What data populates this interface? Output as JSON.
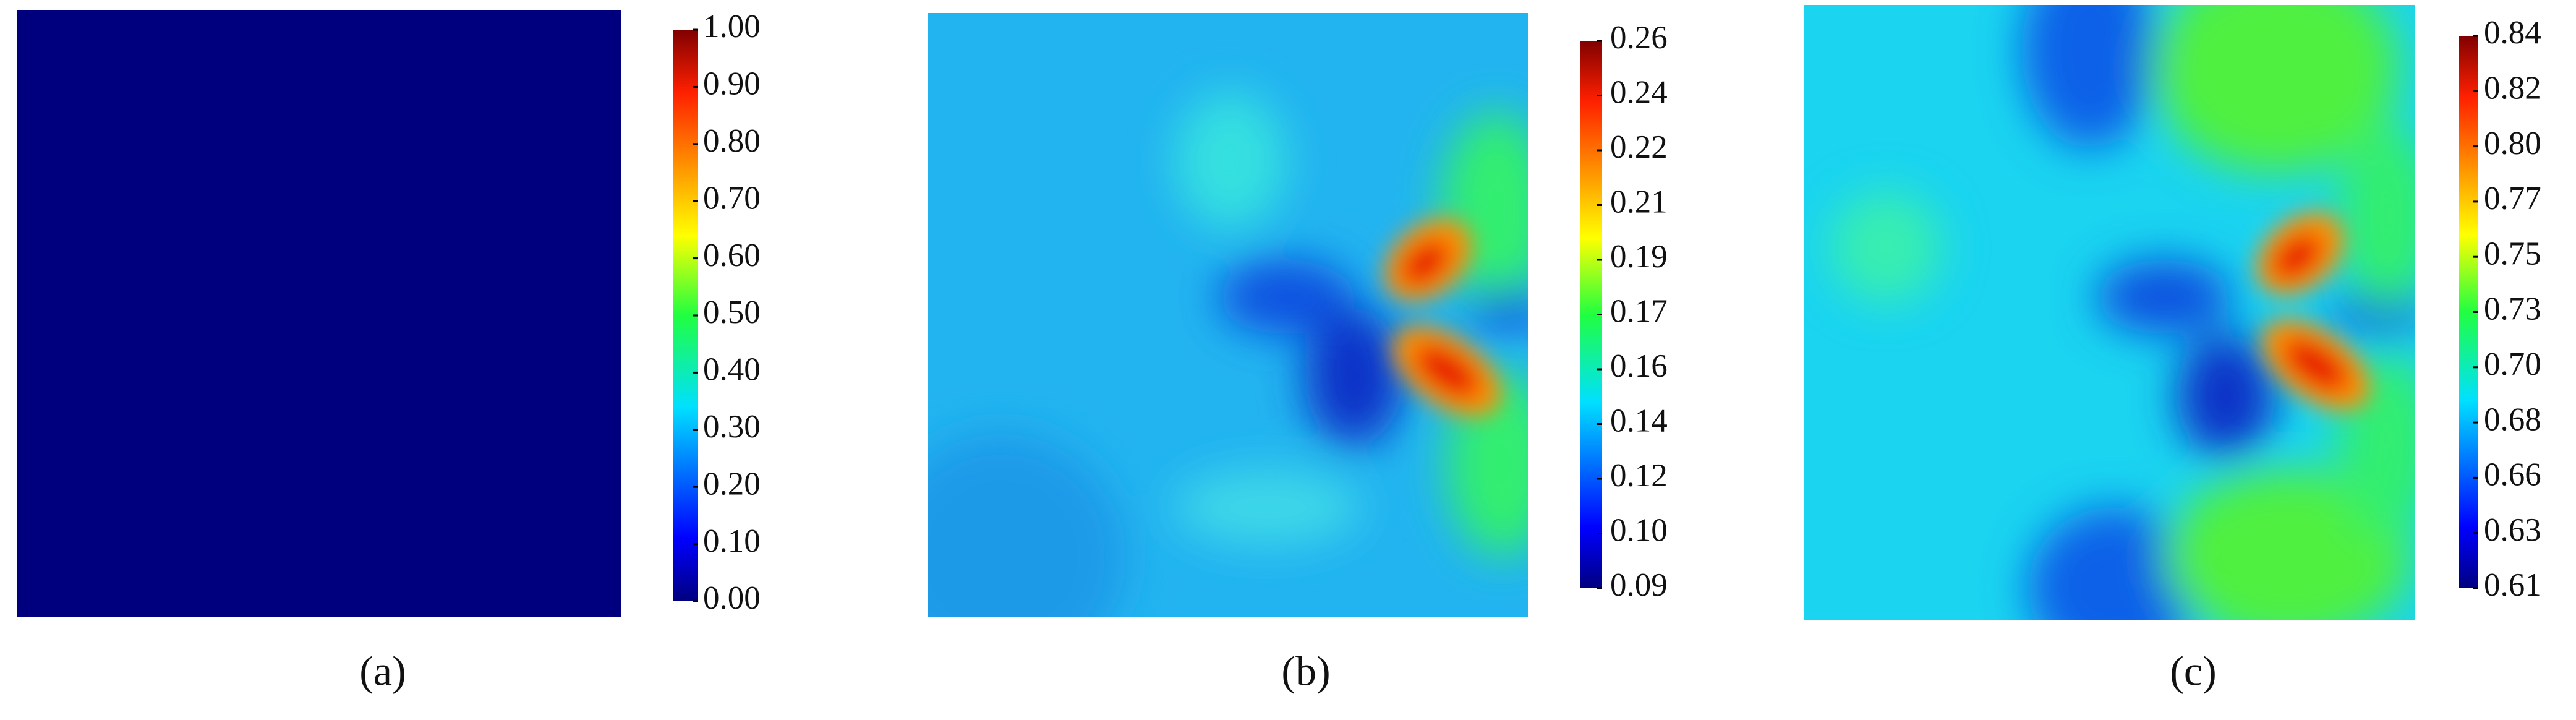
{
  "chart_data": [
    {
      "type": "heatmap",
      "title": "(a)",
      "clim": [
        0,
        1
      ],
      "cticks": [
        {
          "value": 0,
          "label": "0.00"
        },
        {
          "value": 0.1,
          "label": "0.10"
        },
        {
          "value": 0.2,
          "label": "0.20"
        },
        {
          "value": 0.3,
          "label": "0.30"
        },
        {
          "value": 0.4,
          "label": "0.40"
        },
        {
          "value": 0.5,
          "label": "0.50"
        },
        {
          "value": 0.6,
          "label": "0.60"
        },
        {
          "value": 0.7,
          "label": "0.70"
        },
        {
          "value": 0.8,
          "label": "0.80"
        },
        {
          "value": 0.9,
          "label": "0.90"
        },
        {
          "value": 1,
          "label": "1.00"
        }
      ]
    },
    {
      "type": "heatmap",
      "title": "(b)",
      "clim": [
        0.0875,
        0.2575
      ],
      "cticks": [
        {
          "value": 0.0875,
          "label": "0.09"
        },
        {
          "value": 0.1045,
          "label": "0.10"
        },
        {
          "value": 0.1215,
          "label": "0.12"
        },
        {
          "value": 0.1385,
          "label": "0.14"
        },
        {
          "value": 0.1555,
          "label": "0.16"
        },
        {
          "value": 0.1725,
          "label": "0.17"
        },
        {
          "value": 0.1895,
          "label": "0.19"
        },
        {
          "value": 0.2065,
          "label": "0.21"
        },
        {
          "value": 0.2235,
          "label": "0.22"
        },
        {
          "value": 0.2405,
          "label": "0.24"
        },
        {
          "value": 0.2575,
          "label": "0.26"
        }
      ]
    },
    {
      "type": "heatmap",
      "title": "(c)",
      "clim": [
        0.6105,
        0.8425
      ],
      "cticks": [
        {
          "value": 0.6105,
          "label": "0.61"
        },
        {
          "value": 0.6337,
          "label": "0.63"
        },
        {
          "value": 0.6569,
          "label": "0.66"
        },
        {
          "value": 0.6801,
          "label": "0.68"
        },
        {
          "value": 0.7033,
          "label": "0.70"
        },
        {
          "value": 0.7265,
          "label": "0.73"
        },
        {
          "value": 0.7497,
          "label": "0.75"
        },
        {
          "value": 0.7729,
          "label": "0.77"
        },
        {
          "value": 0.7961,
          "label": "0.80"
        },
        {
          "value": 0.8193,
          "label": "0.82"
        },
        {
          "value": 0.8425,
          "label": "0.84"
        }
      ]
    }
  ]
}
